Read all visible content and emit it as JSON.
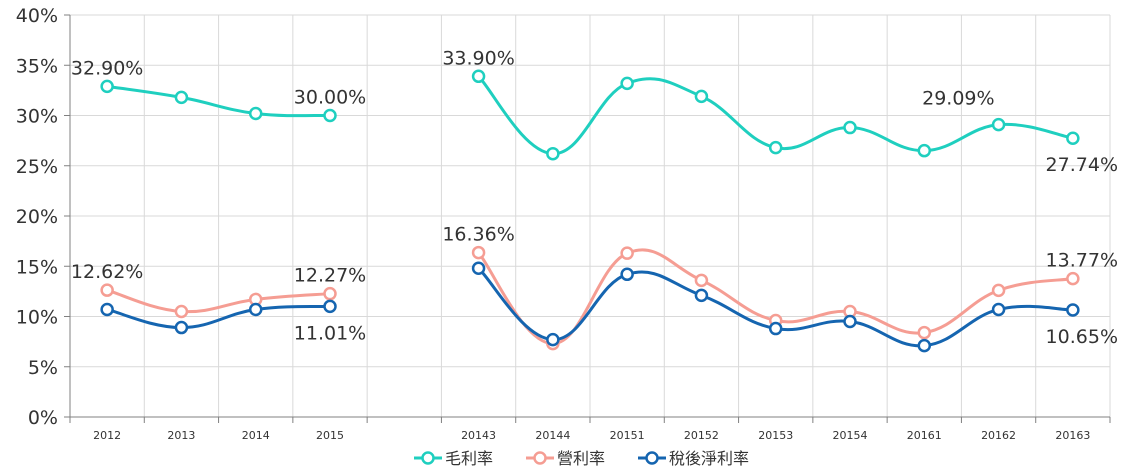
{
  "chart_data": {
    "type": "line",
    "categories": [
      "2012",
      "2013",
      "2014",
      "2015",
      "",
      "20143",
      "20144",
      "20151",
      "20152",
      "20153",
      "20154",
      "20161",
      "20162",
      "20163"
    ],
    "ylim": [
      0,
      40
    ],
    "yticks": [
      "0%",
      "5%",
      "10%",
      "15%",
      "20%",
      "25%",
      "30%",
      "35%",
      "40%"
    ],
    "grid": true,
    "legend_position": "bottom",
    "series": [
      {
        "name": "毛利率",
        "color": "#1fcfbf",
        "values": [
          32.9,
          31.8,
          30.2,
          30.0,
          null,
          33.9,
          26.2,
          33.2,
          31.9,
          26.8,
          28.8,
          26.5,
          29.09,
          27.74
        ]
      },
      {
        "name": "營利率",
        "color": "#f59d93",
        "values": [
          12.62,
          10.5,
          11.7,
          12.27,
          null,
          16.36,
          7.3,
          16.3,
          13.6,
          9.6,
          10.5,
          8.4,
          12.6,
          13.77
        ]
      },
      {
        "name": "稅後淨利率",
        "color": "#1565b0",
        "values": [
          10.7,
          8.9,
          10.7,
          11.01,
          null,
          14.8,
          7.7,
          14.2,
          12.1,
          8.8,
          9.5,
          7.1,
          10.7,
          10.65
        ]
      }
    ],
    "data_labels": [
      {
        "series": 0,
        "index": 0,
        "text": "32.90%",
        "place": "above"
      },
      {
        "series": 0,
        "index": 3,
        "text": "30.00%",
        "place": "above"
      },
      {
        "series": 0,
        "index": 5,
        "text": "33.90%",
        "place": "above"
      },
      {
        "series": 0,
        "index": 12,
        "text": "29.09%",
        "place": "above-left"
      },
      {
        "series": 0,
        "index": 13,
        "text": "27.74%",
        "place": "below"
      },
      {
        "series": 1,
        "index": 0,
        "text": "12.62%",
        "place": "above"
      },
      {
        "series": 1,
        "index": 3,
        "text": "12.27%",
        "place": "above"
      },
      {
        "series": 1,
        "index": 5,
        "text": "16.36%",
        "place": "above"
      },
      {
        "series": 1,
        "index": 13,
        "text": "13.77%",
        "place": "above"
      },
      {
        "series": 2,
        "index": 3,
        "text": "11.01%",
        "place": "below"
      },
      {
        "series": 2,
        "index": 13,
        "text": "10.65%",
        "place": "below"
      }
    ]
  }
}
